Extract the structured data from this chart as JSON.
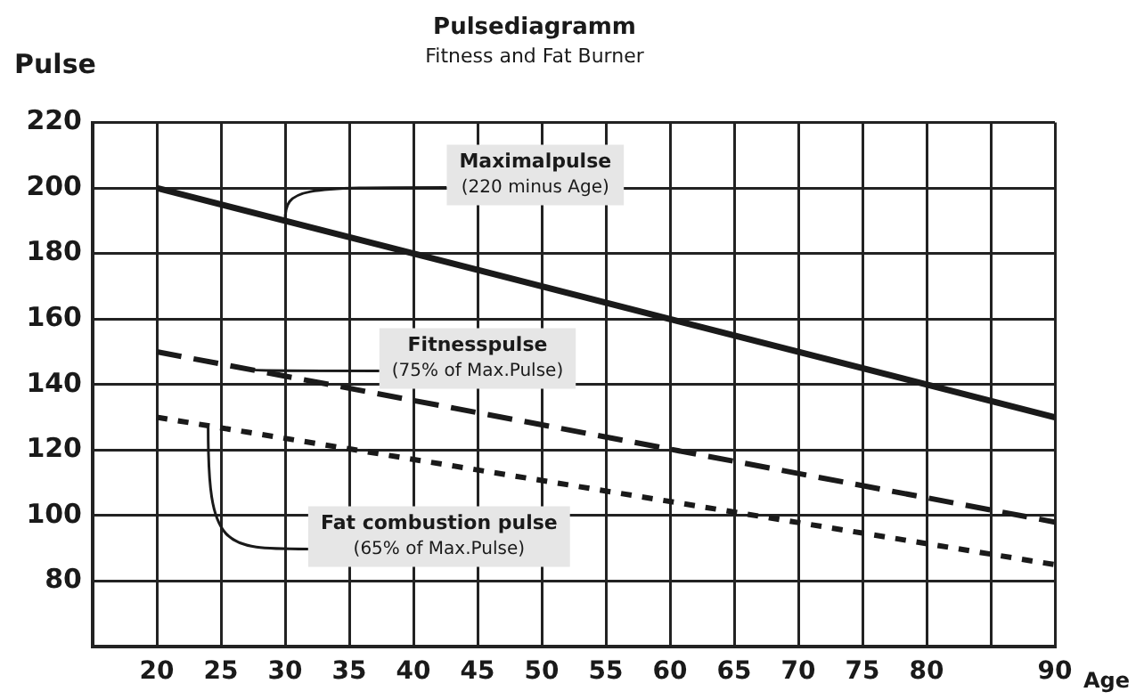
{
  "chart_data": {
    "type": "line",
    "title": "Pulsediagramm",
    "subtitle": "Fitness and Fat Burner",
    "xlabel": "Age",
    "ylabel": "Pulse",
    "x": [
      20,
      90
    ],
    "series": [
      {
        "name": "Maximalpulse",
        "color": "#1a1a1a",
        "line_style": "solid",
        "values": [
          200,
          130
        ]
      },
      {
        "name": "Fitnesspulse",
        "color": "#1a1a1a",
        "line_style": "dashed",
        "values": [
          150,
          98
        ]
      },
      {
        "name": "Fat combustion pulse",
        "color": "#1a1a1a",
        "line_style": "dotted",
        "values": [
          130,
          85
        ]
      }
    ],
    "annotations": [
      {
        "text": "(220 minus Age)",
        "x": 30,
        "y": 190
      },
      {
        "text": "(75% of Max.Pulse)",
        "x": 27,
        "y": 145
      },
      "(65% of Max.Pulse)"
    ],
    "xlim": [
      15,
      90
    ],
    "xticks": [
      20,
      25,
      30,
      35,
      40,
      45,
      50,
      55,
      60,
      65,
      70,
      75,
      80,
      {
        "value": 85,
        "label": null
      },
      90
    ],
    "ylim": [
      60,
      220
    ],
    "yticks": [
      {
        "value": 60,
        "label": null
      },
      80,
      100,
      120,
      140,
      160,
      180,
      200,
      220
    ],
    "grid": true,
    "legend": false,
    "marker": "none"
  }
}
